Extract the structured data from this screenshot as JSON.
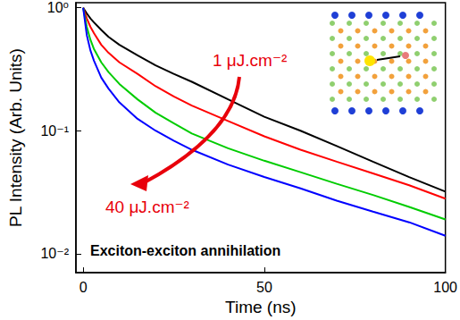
{
  "chart_data": {
    "type": "line",
    "x_label": "Time (ns)",
    "y_label": "PL Intensity (Arb. Units)",
    "annotations": [
      {
        "text": "1 μJ.cm⁻²",
        "color": "#e8000b"
      },
      {
        "text": "40 μJ.cm⁻²",
        "color": "#e8000b"
      },
      {
        "text": "Exciton-exciton annihilation",
        "color": "#000000"
      }
    ],
    "x": [
      0,
      1,
      2,
      3,
      5,
      7,
      10,
      15,
      20,
      25,
      30,
      40,
      50,
      60,
      70,
      80,
      90,
      100
    ],
    "series": [
      {
        "color": "#000000",
        "values": [
          1,
          0.9,
          0.82,
          0.76,
          0.66,
          0.58,
          0.5,
          0.41,
          0.34,
          0.29,
          0.25,
          0.18,
          0.13,
          0.1,
          0.075,
          0.056,
          0.042,
          0.032
        ]
      },
      {
        "color": "#ff0000",
        "values": [
          1,
          0.82,
          0.7,
          0.62,
          0.5,
          0.43,
          0.36,
          0.29,
          0.23,
          0.19,
          0.16,
          0.12,
          0.09,
          0.07,
          0.056,
          0.045,
          0.036,
          0.028
        ]
      },
      {
        "color": "#00cc00",
        "values": [
          1,
          0.7,
          0.55,
          0.46,
          0.36,
          0.3,
          0.24,
          0.18,
          0.14,
          0.115,
          0.095,
          0.072,
          0.057,
          0.046,
          0.037,
          0.03,
          0.024,
          0.019
        ]
      },
      {
        "color": "#0000ff",
        "values": [
          1,
          0.6,
          0.45,
          0.37,
          0.27,
          0.22,
          0.17,
          0.125,
          0.1,
          0.083,
          0.07,
          0.053,
          0.042,
          0.034,
          0.027,
          0.022,
          0.018,
          0.014
        ]
      }
    ],
    "xlim": [
      -2,
      100
    ],
    "xticks": [
      0,
      50,
      100
    ],
    "ylim": [
      0.007,
      1.1
    ],
    "yticks": [
      {
        "value": 0.01,
        "label": "10⁻²"
      },
      {
        "value": 0.1,
        "label": "10⁻¹"
      },
      {
        "value": 1,
        "label": "10⁰"
      }
    ],
    "log": "y",
    "grid": false
  }
}
